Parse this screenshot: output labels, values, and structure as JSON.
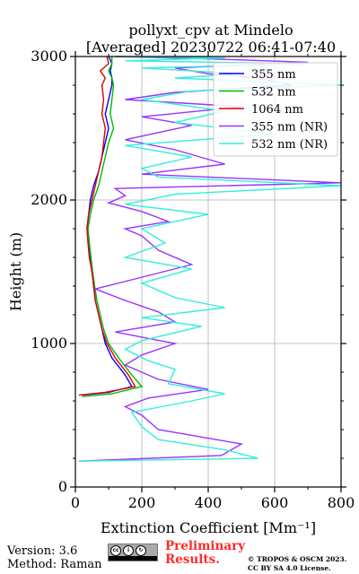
{
  "chart_data": {
    "type": "line",
    "title": [
      "pollyxt_cpv at Mindelo",
      "[Averaged] 20230722 06:41-07:40"
    ],
    "xlabel": "Extinction Coefficient [Mm⁻¹]",
    "ylabel": "Height (m)",
    "xlim": [
      0,
      800
    ],
    "ylim": [
      0,
      3000
    ],
    "xticks": [
      "0",
      "200",
      "400",
      "600",
      "800"
    ],
    "yticks": [
      "0",
      "1000",
      "2000",
      "3000"
    ],
    "grid": true,
    "legend_position": "top-right",
    "series": [
      {
        "name": "355 nm",
        "color": "#0000ff",
        "x": [
          20,
          100,
          170,
          150,
          110,
          90,
          80,
          70,
          60,
          55,
          50,
          45,
          40,
          35,
          40,
          45,
          55,
          70,
          80,
          90,
          100,
          95,
          90,
          100,
          110,
          110,
          105,
          110,
          100
        ],
        "y": [
          640,
          660,
          700,
          780,
          900,
          1000,
          1100,
          1200,
          1300,
          1400,
          1500,
          1600,
          1700,
          1800,
          1900,
          2000,
          2100,
          2200,
          2300,
          2400,
          2500,
          2550,
          2600,
          2700,
          2800,
          2850,
          2900,
          2950,
          3000
        ]
      },
      {
        "name": "532 nm",
        "color": "#00bb00",
        "x": [
          20,
          110,
          200,
          170,
          130,
          100,
          85,
          75,
          65,
          58,
          52,
          47,
          42,
          38,
          45,
          55,
          70,
          80,
          90,
          100,
          115,
          110,
          105,
          110,
          115,
          110,
          100,
          110,
          110
        ],
        "y": [
          630,
          650,
          700,
          780,
          900,
          1000,
          1100,
          1200,
          1300,
          1400,
          1500,
          1600,
          1700,
          1800,
          1900,
          2000,
          2100,
          2200,
          2300,
          2400,
          2500,
          2550,
          2600,
          2700,
          2800,
          2850,
          2900,
          2950,
          3000
        ]
      },
      {
        "name": "1064 nm",
        "color": "#dd0000",
        "x": [
          10,
          90,
          180,
          160,
          120,
          95,
          80,
          70,
          60,
          55,
          50,
          42,
          38,
          35,
          40,
          50,
          60,
          70,
          80,
          85,
          90,
          85,
          80,
          85,
          80,
          90,
          75,
          100,
          95
        ],
        "y": [
          640,
          660,
          700,
          780,
          900,
          1000,
          1100,
          1200,
          1300,
          1400,
          1500,
          1600,
          1700,
          1800,
          1900,
          2000,
          2100,
          2200,
          2300,
          2400,
          2500,
          2550,
          2600,
          2700,
          2800,
          2850,
          2900,
          2950,
          3000
        ]
      },
      {
        "name": "355 nm (NR)",
        "color": "#9933ff",
        "x": [
          10,
          440,
          500,
          250,
          200,
          150,
          220,
          400,
          250,
          150,
          200,
          300,
          120,
          300,
          250,
          150,
          60,
          180,
          350,
          250,
          200,
          150,
          280,
          200,
          100,
          150,
          120,
          800,
          200,
          450,
          300,
          150,
          350,
          200,
          500,
          150,
          300,
          650,
          550,
          400,
          300,
          700,
          450,
          120
        ],
        "y": [
          180,
          220,
          300,
          400,
          500,
          560,
          620,
          680,
          750,
          850,
          920,
          1000,
          1080,
          1150,
          1220,
          1300,
          1380,
          1450,
          1550,
          1650,
          1750,
          1800,
          1850,
          1920,
          1980,
          2030,
          2080,
          2120,
          2180,
          2250,
          2350,
          2420,
          2520,
          2580,
          2650,
          2700,
          2750,
          2800,
          2850,
          2880,
          2920,
          2960,
          2980,
          3000
        ]
      },
      {
        "name": "532 nm (NR)",
        "color": "#33eedd",
        "x": [
          10,
          550,
          450,
          250,
          200,
          170,
          350,
          450,
          280,
          300,
          220,
          150,
          200,
          380,
          200,
          450,
          300,
          200,
          350,
          150,
          270,
          200,
          400,
          150,
          300,
          800,
          250,
          200,
          350,
          150,
          600,
          300,
          450,
          200,
          350,
          800,
          300,
          500,
          200,
          700,
          150,
          450,
          120
        ],
        "y": [
          180,
          200,
          260,
          330,
          420,
          520,
          600,
          650,
          720,
          820,
          880,
          960,
          1020,
          1120,
          1180,
          1250,
          1320,
          1420,
          1520,
          1600,
          1700,
          1800,
          1900,
          1970,
          2040,
          2100,
          2160,
          2220,
          2300,
          2380,
          2460,
          2540,
          2620,
          2700,
          2760,
          2800,
          2850,
          2880,
          2920,
          2950,
          2970,
          2990,
          3000
        ]
      }
    ]
  },
  "footer": {
    "version": "Version: 3.6",
    "method": "Method: Raman",
    "preliminary_line1": "Preliminary",
    "preliminary_line2": "Results.",
    "credit_line1": "© TROPOS & OSCM 2023.",
    "credit_line2": "CC BY SA 4.0 License."
  },
  "license_badge": {
    "icon": "cc-by-sa-icon",
    "symbols": [
      "cc",
      "i",
      "↻"
    ]
  }
}
